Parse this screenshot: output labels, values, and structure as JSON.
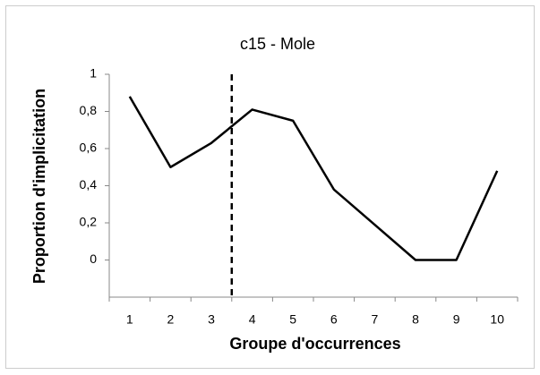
{
  "chart_data": {
    "type": "line",
    "title": "c15 - Mole",
    "x_label": "Groupe d'occurrences",
    "y_label": "Proportion d'implicitation",
    "x": [
      1,
      2,
      3,
      4,
      5,
      6,
      7,
      8,
      9,
      10
    ],
    "xlim": [
      0.5,
      10.5
    ],
    "xticks": [
      1,
      2,
      3,
      4,
      5,
      6,
      7,
      8,
      9,
      10
    ],
    "series": [
      {
        "name": "c15 - Mole",
        "color": "#000000",
        "values": [
          0.88,
          0.5,
          0.63,
          0.81,
          0.75,
          0.38,
          0.19,
          0,
          0,
          0.48
        ]
      }
    ],
    "ylim": [
      -0.2,
      1
    ],
    "yticks": [
      0,
      {
        "value": 0.2,
        "label": "0,2"
      },
      {
        "value": 0.4,
        "label": "0,4"
      },
      {
        "value": 0.6,
        "label": "0,6"
      },
      {
        "value": 0.8,
        "label": "0,8"
      },
      1
    ],
    "reference_line": {
      "x": 3.5,
      "style": "dashed"
    },
    "grid": false,
    "legend": false
  }
}
